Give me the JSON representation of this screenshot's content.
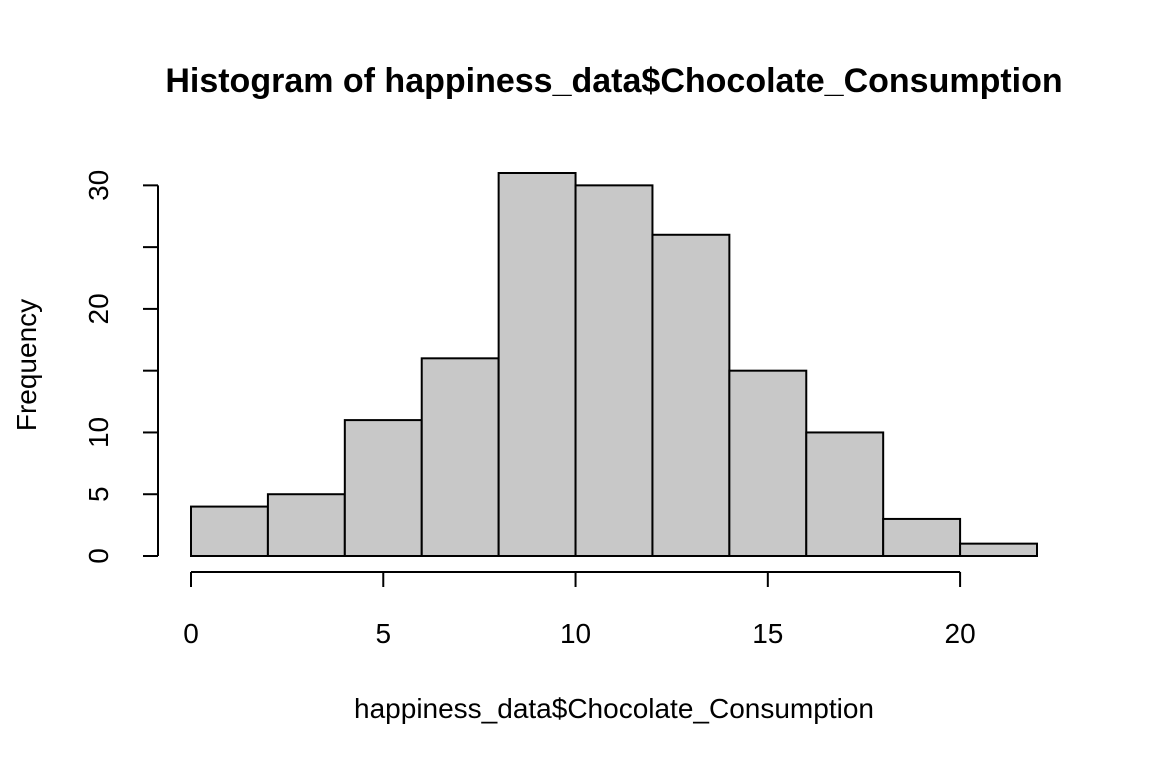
{
  "chart_data": {
    "type": "bar",
    "title": "Histogram of happiness_data$Chocolate_Consumption",
    "xlabel": "happiness_data$Chocolate_Consumption",
    "ylabel": "Frequency",
    "bins": [
      {
        "x0": 0,
        "x1": 2,
        "count": 4
      },
      {
        "x0": 2,
        "x1": 4,
        "count": 5
      },
      {
        "x0": 4,
        "x1": 6,
        "count": 11
      },
      {
        "x0": 6,
        "x1": 8,
        "count": 16
      },
      {
        "x0": 8,
        "x1": 10,
        "count": 31
      },
      {
        "x0": 10,
        "x1": 12,
        "count": 30
      },
      {
        "x0": 12,
        "x1": 14,
        "count": 26
      },
      {
        "x0": 14,
        "x1": 16,
        "count": 15
      },
      {
        "x0": 16,
        "x1": 18,
        "count": 10
      },
      {
        "x0": 18,
        "x1": 20,
        "count": 3
      },
      {
        "x0": 20,
        "x1": 22,
        "count": 1
      }
    ],
    "xlim": [
      0,
      22
    ],
    "ylim": [
      0,
      31
    ],
    "x_axis_range": [
      0,
      20
    ],
    "y_axis_range": [
      0,
      30
    ],
    "xticks": [
      0,
      5,
      10,
      15,
      20
    ],
    "xtick_labels": [
      "0",
      "5",
      "10",
      "15",
      "20"
    ],
    "yticks": [
      0,
      5,
      10,
      15,
      20,
      25,
      30
    ],
    "ytick_labels": [
      "0",
      "5",
      "10",
      "",
      "20",
      "",
      "30"
    ],
    "grid": false,
    "bar_color": "#c8c8c8",
    "border_color": "#000000"
  }
}
